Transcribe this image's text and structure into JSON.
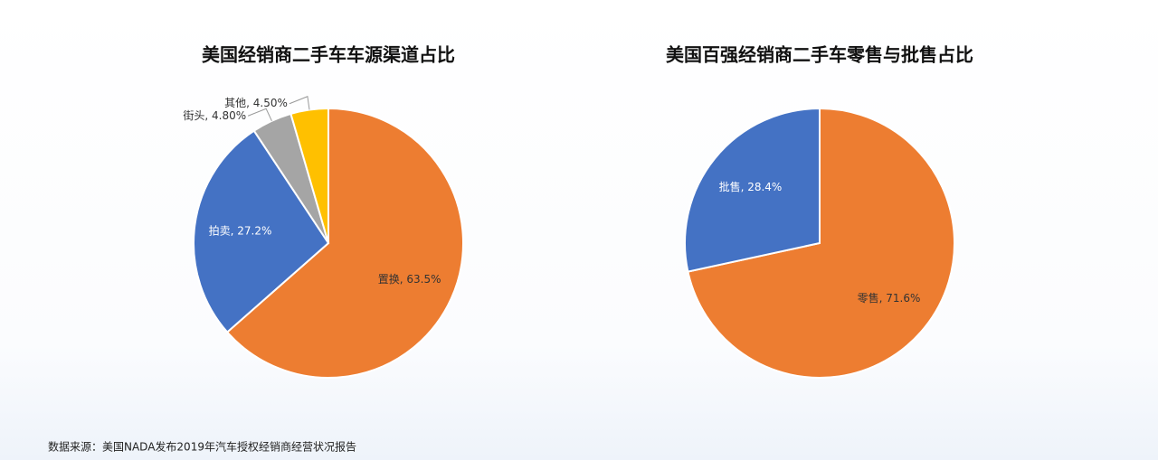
{
  "chart_data": [
    {
      "type": "pie",
      "title": "美国经销商二手车车源渠道占比",
      "categories": [
        "置换",
        "拍卖",
        "街头",
        "其他"
      ],
      "values": [
        63.5,
        27.2,
        4.8,
        4.5
      ],
      "value_labels": [
        "置换, 63.5%",
        "拍卖, 27.2%",
        "街头, 4.80%",
        "其他, 4.50%"
      ],
      "colors": [
        "#ed7d31",
        "#4472c4",
        "#a5a5a5",
        "#ffc000"
      ]
    },
    {
      "type": "pie",
      "title": "美国百强经销商二手车零售与批售占比",
      "categories": [
        "零售",
        "批售"
      ],
      "values": [
        71.6,
        28.4
      ],
      "value_labels": [
        "零售, 71.6%",
        "批售, 28.4%"
      ],
      "colors": [
        "#ed7d31",
        "#4472c4"
      ]
    }
  ],
  "source": "数据来源：美国NADA发布2019年汽车授权经销商经营状况报告"
}
